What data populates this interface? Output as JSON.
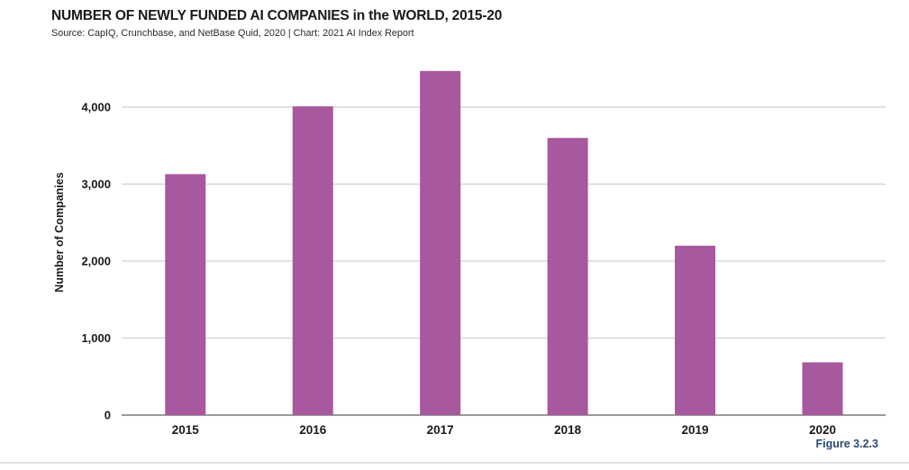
{
  "header": {
    "title": "NUMBER OF NEWLY FUNDED AI COMPANIES in the WORLD, 2015-20",
    "source": "Source: CapIQ, Crunchbase, and NetBase Quid, 2020 | Chart: 2021 AI Index Report"
  },
  "figure_label": "Figure 3.2.3",
  "chart_data": {
    "type": "bar",
    "title": "NUMBER OF NEWLY FUNDED AI COMPANIES in the WORLD, 2015-20",
    "subtitle": "Source: CapIQ, Crunchbase, and NetBase Quid, 2020 | Chart: 2021 AI Index Report",
    "categories": [
      "2015",
      "2016",
      "2017",
      "2018",
      "2019",
      "2020"
    ],
    "values": [
      3130,
      4010,
      4470,
      3600,
      2200,
      685
    ],
    "xlabel": "",
    "ylabel": "Number of Companies",
    "ylim": [
      0,
      4500
    ],
    "yticks": [
      0,
      1000,
      2000,
      3000,
      4000
    ],
    "ytick_labels": [
      "0",
      "1,000",
      "2,000",
      "3,000",
      "4,000"
    ],
    "grid": "horizontal",
    "legend": "none"
  },
  "colors": {
    "bar": "#a7589e",
    "gridline": "#d8d8d8",
    "baseline": "#9a9a9a",
    "axis_text": "#1a1a1a",
    "figure_label": "#2a4a71"
  }
}
